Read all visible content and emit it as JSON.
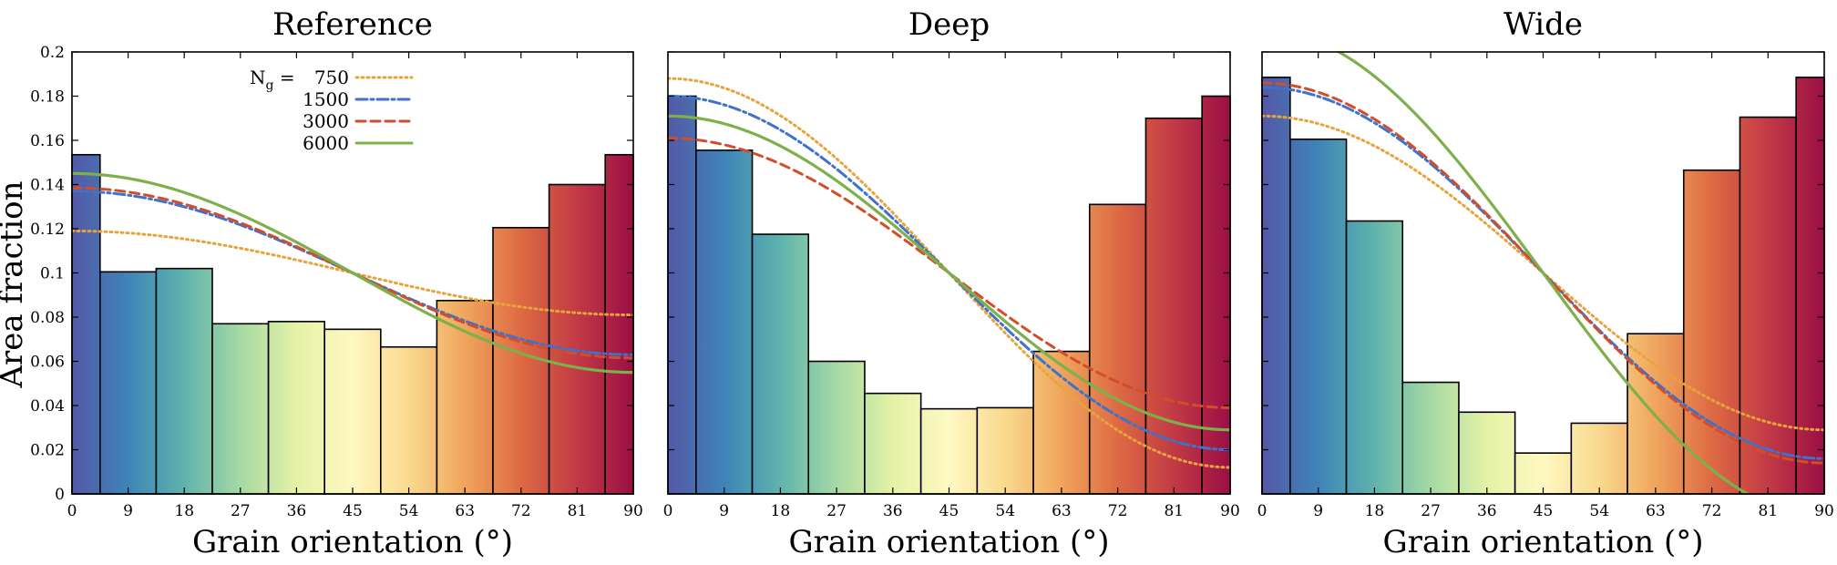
{
  "figure": {
    "ylabel": "Area fraction",
    "xlabel": "Grain orientation (°)",
    "yticks": [
      "0",
      "0.02",
      "0.04",
      "0.06",
      "0.08",
      "0.1",
      "0.12",
      "0.14",
      "0.16",
      "0.18",
      "0.2"
    ],
    "xticks": [
      "0",
      "9",
      "18",
      "27",
      "36",
      "45",
      "54",
      "63",
      "72",
      "81",
      "90"
    ],
    "legend": {
      "prefix": "N",
      "subscript": "g",
      "equals": " =",
      "entries": [
        {
          "label": "750",
          "color": "#E8A33D",
          "dash": "dotted"
        },
        {
          "label": "1500",
          "color": "#3F72C9",
          "dash": "dashdot"
        },
        {
          "label": "3000",
          "color": "#D24E2B",
          "dash": "dashed"
        },
        {
          "label": "6000",
          "color": "#7DB04B",
          "dash": "solid"
        }
      ]
    }
  },
  "colors": {
    "gradient": [
      "#5558A7",
      "#3E84B8",
      "#5FB3AD",
      "#A6D9A4",
      "#E4F2A6",
      "#FFF8C2",
      "#F9D98E",
      "#F0A55D",
      "#DD6A43",
      "#C23A45",
      "#9A0F45"
    ],
    "curve_750": "#E8A33D",
    "curve_1500": "#3F72C9",
    "curve_3000": "#D24E2B",
    "curve_6000": "#7DB04B"
  },
  "chart_data": [
    {
      "type": "bar",
      "title": "Reference",
      "xlabel": "Grain orientation (°)",
      "ylabel": "Area fraction",
      "xlim": [
        0,
        90
      ],
      "ylim": [
        0,
        0.2
      ],
      "bins": [
        {
          "from": 0,
          "to": 4.5,
          "value": 0.1535
        },
        {
          "from": 4.5,
          "to": 13.5,
          "value": 0.1005
        },
        {
          "from": 13.5,
          "to": 22.5,
          "value": 0.102
        },
        {
          "from": 22.5,
          "to": 31.5,
          "value": 0.077
        },
        {
          "from": 31.5,
          "to": 40.5,
          "value": 0.078
        },
        {
          "from": 40.5,
          "to": 49.5,
          "value": 0.0745
        },
        {
          "from": 49.5,
          "to": 58.5,
          "value": 0.0665
        },
        {
          "from": 58.5,
          "to": 67.5,
          "value": 0.0875
        },
        {
          "from": 67.5,
          "to": 76.5,
          "value": 0.1205
        },
        {
          "from": 76.5,
          "to": 85.5,
          "value": 0.14
        },
        {
          "from": 85.5,
          "to": 90,
          "value": 0.1535
        }
      ],
      "series": [
        {
          "name": "750",
          "curve": "cos2",
          "mean": 0.1,
          "amplitude": 0.019
        },
        {
          "name": "1500",
          "curve": "cos2",
          "mean": 0.1,
          "amplitude": 0.037
        },
        {
          "name": "3000",
          "curve": "cos2",
          "mean": 0.1,
          "amplitude": 0.0385
        },
        {
          "name": "6000",
          "curve": "cos2",
          "mean": 0.1,
          "amplitude": 0.045
        }
      ]
    },
    {
      "type": "bar",
      "title": "Deep",
      "xlabel": "Grain orientation (°)",
      "ylabel": "",
      "xlim": [
        0,
        90
      ],
      "ylim": [
        0,
        0.2
      ],
      "bins": [
        {
          "from": 0,
          "to": 4.5,
          "value": 0.18
        },
        {
          "from": 4.5,
          "to": 13.5,
          "value": 0.1555
        },
        {
          "from": 13.5,
          "to": 22.5,
          "value": 0.1175
        },
        {
          "from": 22.5,
          "to": 31.5,
          "value": 0.06
        },
        {
          "from": 31.5,
          "to": 40.5,
          "value": 0.0455
        },
        {
          "from": 40.5,
          "to": 49.5,
          "value": 0.0385
        },
        {
          "from": 49.5,
          "to": 58.5,
          "value": 0.039
        },
        {
          "from": 58.5,
          "to": 67.5,
          "value": 0.0645
        },
        {
          "from": 67.5,
          "to": 76.5,
          "value": 0.131
        },
        {
          "from": 76.5,
          "to": 85.5,
          "value": 0.17
        },
        {
          "from": 85.5,
          "to": 90,
          "value": 0.18
        }
      ],
      "series": [
        {
          "name": "750",
          "curve": "cos2",
          "mean": 0.1,
          "amplitude": 0.088
        },
        {
          "name": "1500",
          "curve": "cos2",
          "mean": 0.1,
          "amplitude": 0.08
        },
        {
          "name": "3000",
          "curve": "cos2",
          "mean": 0.1,
          "amplitude": 0.061
        },
        {
          "name": "6000",
          "curve": "cos2",
          "mean": 0.1,
          "amplitude": 0.071
        }
      ]
    },
    {
      "type": "bar",
      "title": "Wide",
      "xlabel": "Grain orientation (°)",
      "ylabel": "",
      "xlim": [
        0,
        90
      ],
      "ylim": [
        0,
        0.2
      ],
      "bins": [
        {
          "from": 0,
          "to": 4.5,
          "value": 0.1885
        },
        {
          "from": 4.5,
          "to": 13.5,
          "value": 0.1605
        },
        {
          "from": 13.5,
          "to": 22.5,
          "value": 0.1235
        },
        {
          "from": 22.5,
          "to": 31.5,
          "value": 0.0505
        },
        {
          "from": 31.5,
          "to": 40.5,
          "value": 0.037
        },
        {
          "from": 40.5,
          "to": 49.5,
          "value": 0.0185
        },
        {
          "from": 49.5,
          "to": 58.5,
          "value": 0.032
        },
        {
          "from": 58.5,
          "to": 67.5,
          "value": 0.0725
        },
        {
          "from": 67.5,
          "to": 76.5,
          "value": 0.1465
        },
        {
          "from": 76.5,
          "to": 85.5,
          "value": 0.1705
        },
        {
          "from": 85.5,
          "to": 90,
          "value": 0.1885
        }
      ],
      "series": [
        {
          "name": "750",
          "curve": "cos2",
          "mean": 0.1,
          "amplitude": 0.071
        },
        {
          "name": "1500",
          "curve": "cos2",
          "mean": 0.1,
          "amplitude": 0.084
        },
        {
          "name": "3000",
          "curve": "cos2",
          "mean": 0.1,
          "amplitude": 0.086
        },
        {
          "name": "6000",
          "curve": "cos2",
          "mean": 0.1,
          "amplitude": 0.11
        }
      ]
    }
  ]
}
